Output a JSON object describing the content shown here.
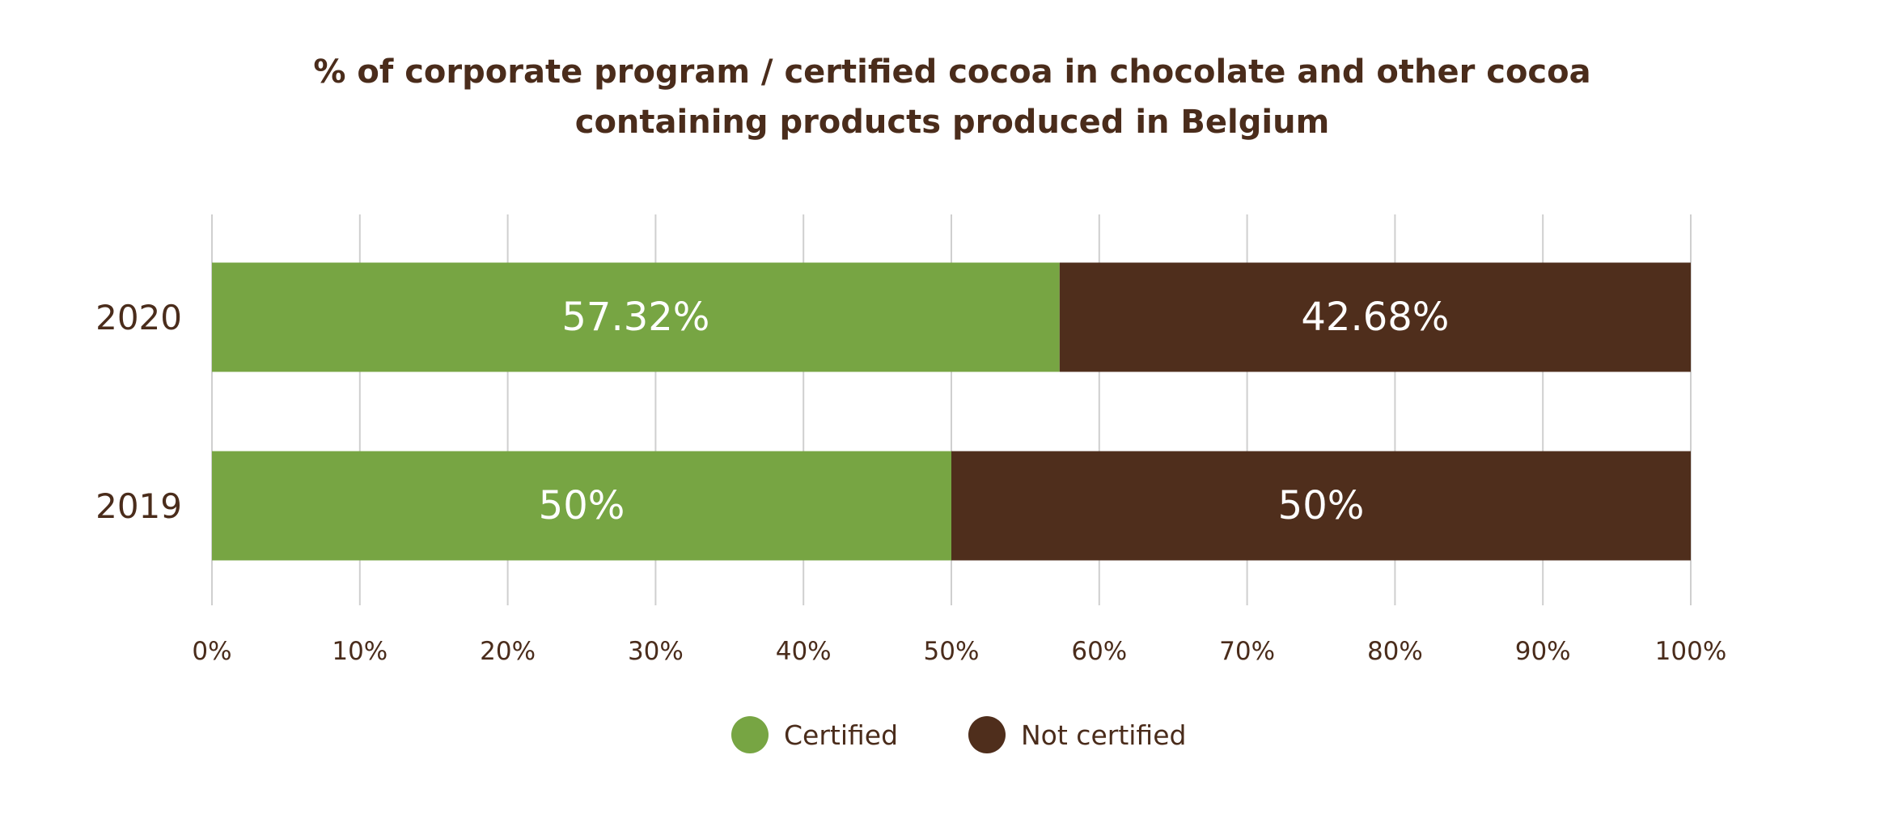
{
  "chart_data": {
    "type": "bar",
    "orientation": "horizontal",
    "stacked": true,
    "title_lines": [
      "% of corporate program / certified cocoa in chocolate and other cocoa",
      "containing products produced in Belgium"
    ],
    "categories": [
      "2020",
      "2019"
    ],
    "series": [
      {
        "name": "Certified",
        "color": "#77a543",
        "values": [
          57.32,
          50
        ],
        "labels": [
          "57.32%",
          "50%"
        ]
      },
      {
        "name": "Not certified",
        "color": "#4f2e1c",
        "values": [
          42.68,
          50
        ],
        "labels": [
          "42.68%",
          "50%"
        ]
      }
    ],
    "xlim": [
      0,
      100
    ],
    "x_ticks": [
      "0%",
      "10%",
      "20%",
      "30%",
      "40%",
      "50%",
      "60%",
      "70%",
      "80%",
      "90%",
      "100%"
    ],
    "grid": true,
    "legend_position": "bottom-center",
    "text_color": "#4a2c1b"
  }
}
